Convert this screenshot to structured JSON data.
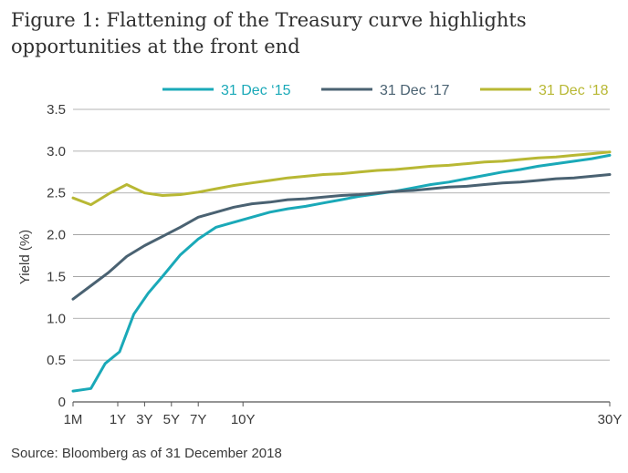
{
  "chart_data": {
    "type": "line",
    "title": "Figure 1: Flattening of the Treasury curve highlights opportunities at the front end",
    "source": "Source: Bloomberg as of 31 December 2018",
    "xlabel": "",
    "ylabel": "Yield (%)",
    "ylim": [
      0,
      3.5
    ],
    "yticks": [
      "0",
      "0.5",
      "1.0",
      "1.5",
      "2.0",
      "2.5",
      "3.0",
      "3.5"
    ],
    "xlim": [
      0,
      30
    ],
    "xticks": [
      {
        "label": "1M",
        "value": 0
      },
      {
        "label": "1Y",
        "value": 2.5
      },
      {
        "label": "3Y",
        "value": 4
      },
      {
        "label": "5Y",
        "value": 5.5
      },
      {
        "label": "7Y",
        "value": 7
      },
      {
        "label": "10Y",
        "value": 9.5
      },
      {
        "label": "30Y",
        "value": 30
      }
    ],
    "grid": true,
    "legend_position": "top",
    "series": [
      {
        "name": "31 Dec ‘15",
        "color": "#1aa9b8",
        "x": [
          0,
          1,
          1.8,
          2.6,
          3.4,
          4.2,
          5.0,
          6.0,
          7.0,
          8.0,
          9.0,
          10.0,
          11.0,
          12.0,
          13.0,
          14.0,
          15.0,
          16.0,
          17.0,
          18.0,
          19.0,
          20.0,
          21.0,
          22.0,
          23.0,
          24.0,
          25.0,
          26.0,
          27.0,
          28.0,
          29.0,
          30.0
        ],
        "values": [
          0.13,
          0.16,
          0.46,
          0.6,
          1.05,
          1.3,
          1.5,
          1.76,
          1.95,
          2.09,
          2.15,
          2.21,
          2.27,
          2.31,
          2.34,
          2.38,
          2.42,
          2.46,
          2.49,
          2.52,
          2.56,
          2.6,
          2.63,
          2.67,
          2.71,
          2.75,
          2.78,
          2.82,
          2.85,
          2.88,
          2.91,
          2.95
        ]
      },
      {
        "name": "31 Dec ‘17",
        "color": "#4a6272",
        "x": [
          0,
          1,
          2,
          3,
          4,
          5,
          6,
          7,
          8,
          9,
          10,
          11,
          12,
          13,
          14,
          15,
          16,
          17,
          18,
          19,
          20,
          21,
          22,
          23,
          24,
          25,
          26,
          27,
          28,
          29,
          30
        ],
        "values": [
          1.23,
          1.39,
          1.55,
          1.74,
          1.87,
          1.98,
          2.09,
          2.21,
          2.27,
          2.33,
          2.37,
          2.39,
          2.42,
          2.43,
          2.45,
          2.47,
          2.48,
          2.5,
          2.52,
          2.53,
          2.55,
          2.57,
          2.58,
          2.6,
          2.62,
          2.63,
          2.65,
          2.67,
          2.68,
          2.7,
          2.72
        ]
      },
      {
        "name": "31 Dec ‘18",
        "color": "#b8b834",
        "x": [
          0,
          1,
          2,
          3,
          4,
          5,
          6,
          7,
          8,
          9,
          10,
          11,
          12,
          13,
          14,
          15,
          16,
          17,
          18,
          19,
          20,
          21,
          22,
          23,
          24,
          25,
          26,
          27,
          28,
          29,
          30
        ],
        "values": [
          2.44,
          2.36,
          2.49,
          2.6,
          2.5,
          2.47,
          2.48,
          2.51,
          2.55,
          2.59,
          2.62,
          2.65,
          2.68,
          2.7,
          2.72,
          2.73,
          2.75,
          2.77,
          2.78,
          2.8,
          2.82,
          2.83,
          2.85,
          2.87,
          2.88,
          2.9,
          2.92,
          2.93,
          2.95,
          2.97,
          2.99
        ]
      }
    ]
  }
}
